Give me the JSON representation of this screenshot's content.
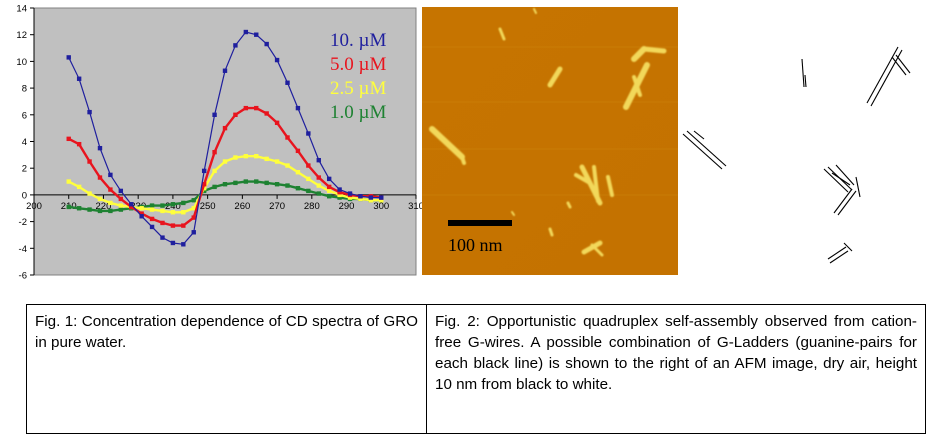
{
  "chart_data": {
    "type": "line",
    "title": "",
    "xlabel": "",
    "ylabel": "",
    "xlim": [
      200,
      310
    ],
    "ylim": [
      -6,
      14
    ],
    "x_ticks": [
      200,
      210,
      220,
      230,
      240,
      250,
      260,
      270,
      280,
      290,
      300,
      310
    ],
    "y_ticks": [
      -6,
      -4,
      -2,
      0,
      2,
      4,
      6,
      8,
      10,
      12,
      14
    ],
    "grid": false,
    "legend_position": "top-right, inside plot",
    "background": "#c0c0c0",
    "series": [
      {
        "name": "10. µM",
        "color": "#1f1f9e",
        "x": [
          210,
          213,
          216,
          219,
          222,
          225,
          228,
          231,
          234,
          237,
          240,
          243,
          246,
          249,
          252,
          255,
          258,
          261,
          264,
          267,
          270,
          273,
          276,
          279,
          282,
          285,
          288,
          291,
          294,
          297,
          300
        ],
        "y": [
          10.3,
          8.7,
          6.2,
          3.5,
          1.5,
          0.3,
          -0.7,
          -1.6,
          -2.4,
          -3.2,
          -3.6,
          -3.7,
          -2.8,
          1.8,
          6.0,
          9.3,
          11.2,
          12.2,
          12.0,
          11.3,
          10.1,
          8.4,
          6.5,
          4.6,
          2.6,
          1.2,
          0.4,
          0.1,
          -0.1,
          -0.2,
          -0.2
        ]
      },
      {
        "name": "5.0 µM",
        "color": "#e8141e",
        "x": [
          210,
          213,
          216,
          219,
          222,
          225,
          228,
          231,
          234,
          237,
          240,
          243,
          246,
          249,
          252,
          255,
          258,
          261,
          264,
          267,
          270,
          273,
          276,
          279,
          282,
          285,
          288,
          291,
          294,
          297,
          300
        ],
        "y": [
          4.2,
          3.8,
          2.5,
          1.3,
          0.4,
          -0.3,
          -0.9,
          -1.4,
          -1.8,
          -2.1,
          -2.3,
          -2.3,
          -1.7,
          0.8,
          3.2,
          5.0,
          6.0,
          6.5,
          6.5,
          6.1,
          5.4,
          4.3,
          3.3,
          2.2,
          1.3,
          0.6,
          0.2,
          0.0,
          -0.1,
          -0.1,
          -0.2
        ]
      },
      {
        "name": "2.5 µM",
        "color": "#ffff3c",
        "x": [
          210,
          213,
          216,
          219,
          222,
          225,
          228,
          231,
          234,
          237,
          240,
          243,
          246,
          249,
          252,
          255,
          258,
          261,
          264,
          267,
          270,
          273,
          276,
          279,
          282,
          285,
          288,
          291,
          294,
          297,
          300
        ],
        "y": [
          1.0,
          0.6,
          0.1,
          -0.3,
          -0.6,
          -0.8,
          -0.9,
          -1.0,
          -1.1,
          -1.2,
          -1.3,
          -1.3,
          -1.0,
          0.5,
          1.8,
          2.5,
          2.8,
          2.9,
          2.9,
          2.7,
          2.5,
          2.2,
          1.7,
          1.2,
          0.7,
          0.3,
          0.0,
          -0.2,
          -0.3,
          -0.4,
          -0.4
        ]
      },
      {
        "name": "1.0 µM",
        "color": "#1e8232",
        "x": [
          210,
          213,
          216,
          219,
          222,
          225,
          228,
          231,
          234,
          237,
          240,
          243,
          246,
          249,
          252,
          255,
          258,
          261,
          264,
          267,
          270,
          273,
          276,
          279,
          282,
          285,
          288,
          291,
          294,
          297,
          300
        ],
        "y": [
          -0.9,
          -1.0,
          -1.1,
          -1.2,
          -1.2,
          -1.1,
          -1.0,
          -0.9,
          -0.8,
          -0.8,
          -0.7,
          -0.6,
          -0.4,
          0.3,
          0.6,
          0.8,
          0.9,
          1.0,
          1.0,
          0.9,
          0.8,
          0.7,
          0.5,
          0.3,
          0.1,
          -0.1,
          -0.2,
          -0.3,
          -0.3,
          -0.4,
          -0.4
        ]
      }
    ]
  },
  "figures": {
    "afm": {
      "scale_bar_label": "100 nm",
      "background_color": "#c87800",
      "feature_color": "#f0d050"
    }
  },
  "captions": {
    "fig1": "Fig. 1: Concentration dependence of CD spectra of GRO in pure water.",
    "fig2": "Fig. 2: Opportunistic quadruplex self-assembly observed from cation-free G-wires.  A possible combination of G-Ladders (guanine-pairs for each black line) is shown to the right of an AFM image, dry air, height 10 nm from black to white."
  }
}
